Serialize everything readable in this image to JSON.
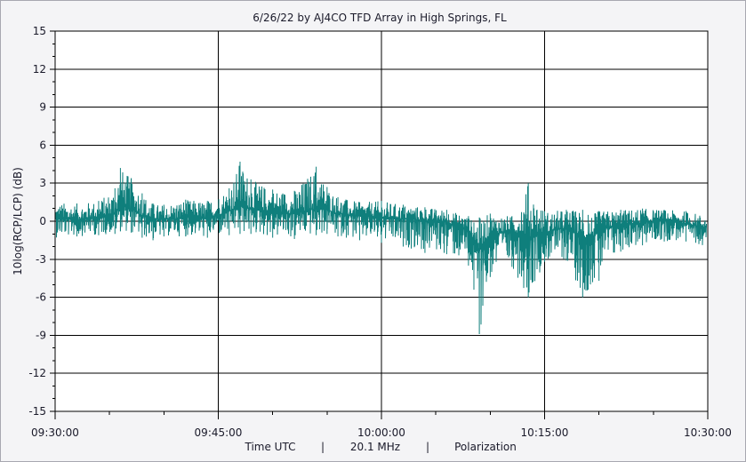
{
  "chart_data": {
    "type": "line",
    "title": "6/26/22  by  AJ4CO TFD Array  in  High Springs, FL",
    "ylabel": "10log(RCP/LCP) (dB)",
    "xlabel_parts": [
      "Time UTC",
      "|",
      "20.1 MHz",
      "|",
      "Polarization"
    ],
    "ylim": [
      -15,
      15
    ],
    "yticks": [
      15,
      12,
      9,
      6,
      3,
      0,
      -3,
      -6,
      -9,
      -12,
      -15
    ],
    "ytick_labels": [
      "15",
      "12",
      "9",
      "6",
      "3",
      "0",
      "-3",
      "-6",
      "-9",
      "-12",
      "-15"
    ],
    "xlim": [
      "09:30:00",
      "10:30:00"
    ],
    "xticks": [
      "09:30:00",
      "09:45:00",
      "10:00:00",
      "10:15:00",
      "10:30:00"
    ],
    "grid": true,
    "series_color": "#0f7f7c",
    "series": [
      {
        "x": [
          "09:30:00",
          "09:32:00",
          "09:34:00",
          "09:35:30",
          "09:36:00",
          "09:37:00",
          "09:38:00",
          "09:39:00",
          "09:40:00",
          "09:42:00",
          "09:44:00",
          "09:46:00",
          "09:47:00",
          "09:48:00",
          "09:50:00",
          "09:52:00",
          "09:54:00",
          "09:55:00",
          "09:56:00",
          "09:58:00",
          "10:00:00",
          "10:02:00",
          "10:04:00",
          "10:06:00",
          "10:08:00",
          "10:08:30",
          "10:09:00",
          "10:10:00",
          "10:12:00",
          "10:13:30",
          "10:15:00",
          "10:17:00",
          "10:18:30",
          "10:19:00",
          "10:20:00",
          "10:22:00",
          "10:24:00",
          "10:26:00",
          "10:28:00",
          "10:30:00"
        ],
        "values": [
          0.2,
          0.1,
          0.3,
          0.6,
          1.3,
          1.0,
          0.4,
          0.2,
          0.1,
          0.3,
          0.2,
          0.8,
          1.2,
          1.0,
          0.7,
          0.6,
          1.0,
          0.9,
          0.6,
          0.4,
          0.3,
          0.2,
          0.1,
          -0.1,
          -0.6,
          -1.5,
          -2.2,
          -1.0,
          -0.8,
          -1.4,
          -0.9,
          -0.5,
          -1.3,
          -1.6,
          -0.7,
          -0.3,
          -0.1,
          0.0,
          -0.2,
          -0.5
        ],
        "max": [
          1.5,
          1.4,
          1.6,
          2.6,
          4.2,
          3.4,
          2.2,
          1.4,
          1.3,
          1.7,
          1.6,
          2.6,
          4.7,
          3.3,
          2.5,
          2.4,
          4.3,
          2.7,
          1.9,
          1.5,
          1.6,
          1.3,
          1.1,
          0.9,
          0.4,
          -0.1,
          0.3,
          0.6,
          0.4,
          3.0,
          0.8,
          0.9,
          0.9,
          0.5,
          0.8,
          0.9,
          1.0,
          0.9,
          0.8,
          0.4
        ],
        "min": [
          -1.3,
          -1.2,
          -1.1,
          -1.0,
          -0.8,
          -0.9,
          -1.3,
          -1.5,
          -1.2,
          -1.2,
          -1.3,
          -1.1,
          -1.0,
          -1.0,
          -1.3,
          -1.4,
          -1.1,
          -1.0,
          -1.2,
          -1.5,
          -1.7,
          -2.0,
          -2.5,
          -2.6,
          -3.5,
          -5.4,
          -8.9,
          -4.4,
          -3.6,
          -6.0,
          -3.2,
          -3.1,
          -6.0,
          -5.4,
          -4.7,
          -2.4,
          -1.9,
          -1.6,
          -1.6,
          -2.0
        ]
      }
    ]
  }
}
